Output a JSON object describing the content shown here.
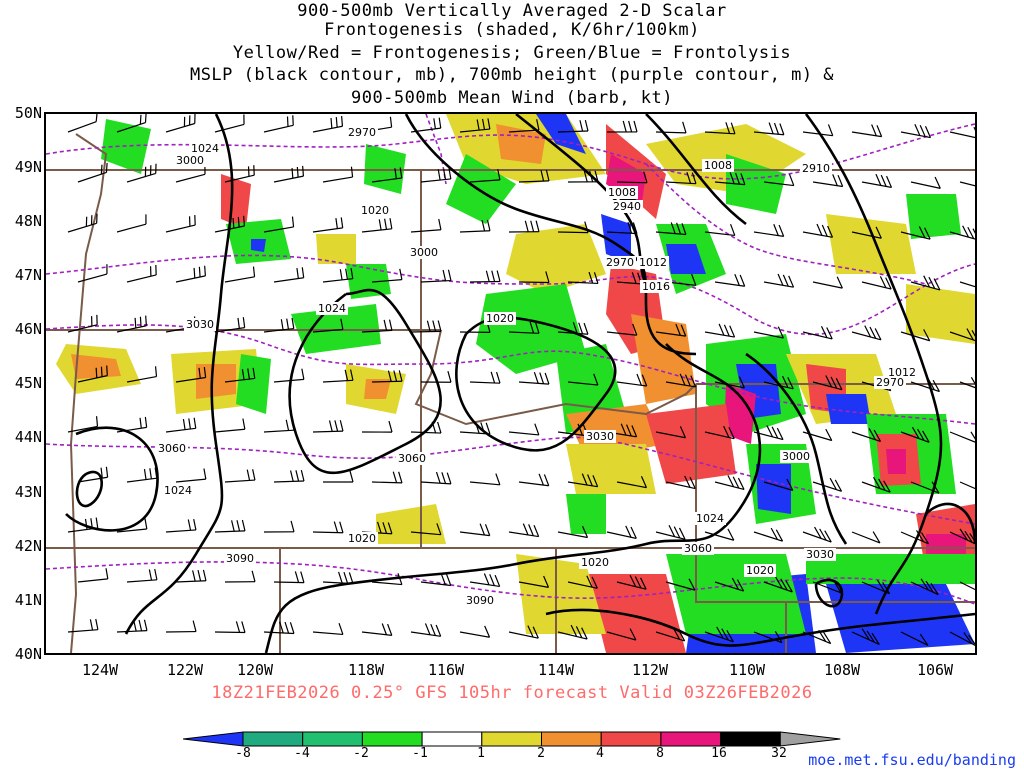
{
  "title": {
    "lines": [
      "900-500mb Vertically Averaged 2-D Scalar",
      "Frontogenesis (shaded, K/6hr/100km)",
      "Yellow/Red = Frontogenesis;  Green/Blue = Frontolysis",
      "MSLP (black contour, mb), 700mb height (purple contour, m) &",
      "900-500mb Mean Wind (barb, kt)"
    ]
  },
  "axes": {
    "lat_labels": [
      "50N",
      "49N",
      "48N",
      "47N",
      "46N",
      "45N",
      "44N",
      "43N",
      "42N",
      "41N",
      "40N"
    ],
    "lon_labels": [
      "124W",
      "122W",
      "120W",
      "118W",
      "116W",
      "114W",
      "112W",
      "110W",
      "108W",
      "106W"
    ]
  },
  "valid_line": "18Z21FEB2026 0.25° GFS 105hr forecast Valid 03Z26FEB2026",
  "colorbar": {
    "ticks": [
      "-8",
      "-4",
      "-2",
      "-1",
      "1",
      "2",
      "4",
      "8",
      "16",
      "32"
    ],
    "colors": [
      "#1f35f5",
      "#1faa80",
      "#20c070",
      "#22dd22",
      "#ffffff",
      "#e0d830",
      "#f09030",
      "#f04848",
      "#e8157a",
      "#000000",
      "#a0a0a0"
    ]
  },
  "contour_labels": {
    "mslp": [
      "1020",
      "1024",
      "1008",
      "1012",
      "1016",
      "1020",
      "1024",
      "1012",
      "1024",
      "1020",
      "1020",
      "1024",
      "1020",
      "1008"
    ],
    "height": [
      "2970",
      "3000",
      "2940",
      "2970",
      "3000",
      "3030",
      "3060",
      "3030",
      "3060",
      "3090",
      "3090",
      "3060",
      "3030",
      "3000",
      "2970",
      "2910"
    ]
  },
  "colors": {
    "mslp_contour": "#000000",
    "height_contour": "#a020c0",
    "borders": "#7a5a48",
    "valid_text": "#ff6a6a",
    "credit": "#1a3cf0"
  },
  "credit": "moe.met.fsu.edu/banding"
}
